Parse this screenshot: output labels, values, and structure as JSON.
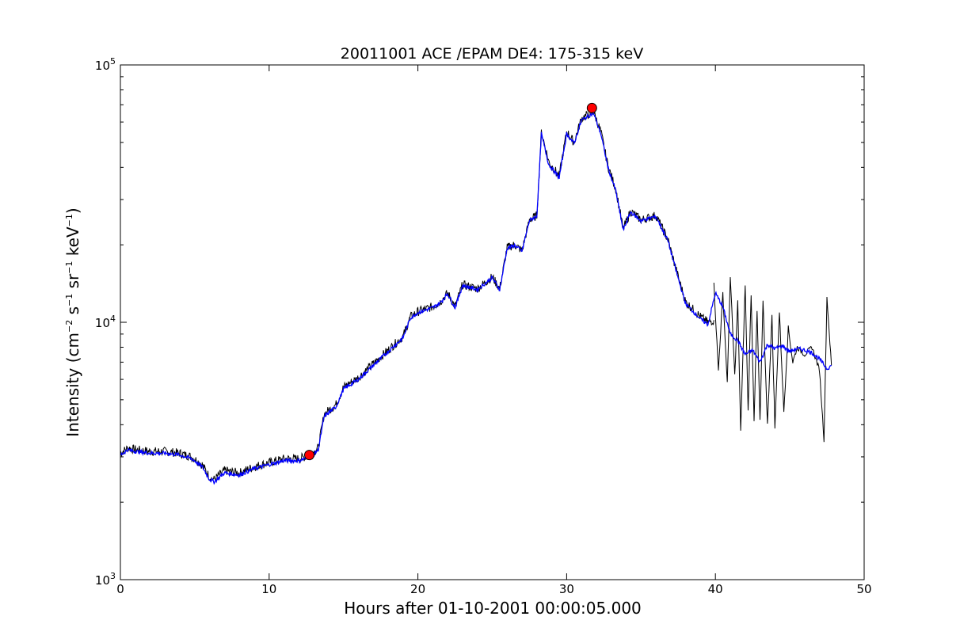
{
  "chart_data": {
    "type": "line",
    "title": "20011001 ACE /EPAM DE4: 175-315 keV",
    "xlabel": "Hours after 01-10-2001 00:00:05.000",
    "ylabel_parts": [
      "Intensity (cm",
      "−2",
      "s",
      "−1",
      "sr",
      "−1",
      "keV",
      "−1",
      ")"
    ],
    "xlim": [
      0,
      50
    ],
    "ylim": [
      1000,
      100000
    ],
    "yscale": "log",
    "grid": false,
    "x_ticks": [
      0,
      10,
      20,
      30,
      40,
      50
    ],
    "x_tick_labels": [
      "0",
      "10",
      "20",
      "30",
      "40",
      "50"
    ],
    "y_ticks": [
      {
        "value": 1000,
        "base": "10",
        "exp": "3"
      },
      {
        "value": 10000,
        "base": "10",
        "exp": "4"
      },
      {
        "value": 100000,
        "base": "10",
        "exp": "5"
      }
    ],
    "colors": {
      "raw": "#000000",
      "smoothed": "#0000ff",
      "marker": "#ff0000"
    },
    "series": [
      {
        "style": "raw",
        "x": [
          0,
          0.5,
          1,
          2,
          3,
          4,
          4.8,
          5.5,
          6,
          6.3,
          7,
          8,
          9,
          10,
          11,
          12,
          12.8,
          13.3,
          13.7,
          14.5,
          15,
          16,
          17,
          18,
          19,
          19.5,
          20,
          21,
          21.5,
          22,
          22.5,
          23,
          24,
          25,
          25.5,
          26,
          26.5,
          27,
          27.5,
          28,
          28.3,
          28.8,
          29.5,
          30,
          30.5,
          31,
          31.8,
          32.3,
          32.8,
          33.3,
          33.8,
          34.3,
          35,
          36,
          36.8,
          37.5,
          38,
          39,
          39.5,
          39.9
        ],
        "y": [
          3100,
          3250,
          3200,
          3150,
          3150,
          3100,
          3000,
          2800,
          2500,
          2450,
          2650,
          2600,
          2750,
          2850,
          2950,
          2950,
          3050,
          3250,
          4400,
          4800,
          5600,
          6100,
          6900,
          7800,
          8800,
          10500,
          11000,
          11500,
          12000,
          13000,
          11500,
          14000,
          13500,
          15000,
          13500,
          19500,
          20000,
          19000,
          25000,
          26000,
          55000,
          42000,
          37000,
          55000,
          50000,
          62000,
          66000,
          55000,
          40000,
          33000,
          23000,
          27000,
          25000,
          26000,
          21000,
          15000,
          12000,
          10500,
          10000,
          10200
        ]
      },
      {
        "style": "raw-noisy",
        "x": [
          39.9,
          40.2,
          40.5,
          40.8,
          41,
          41.3,
          41.5,
          41.7,
          42,
          42.2,
          42.4,
          42.6,
          42.8,
          43,
          43.2,
          43.5,
          43.8,
          44,
          44.3,
          44.6,
          44.9,
          45.2,
          45.5,
          46,
          46.5,
          47,
          47.3,
          47.5,
          47.8
        ],
        "y": [
          14000,
          6500,
          13000,
          5800,
          15000,
          6200,
          12000,
          3800,
          14000,
          4500,
          13000,
          4200,
          11000,
          4100,
          12000,
          4000,
          10500,
          3900,
          11000,
          4500,
          9500,
          7000,
          8000,
          7500,
          8000,
          6500,
          3500,
          12500,
          6800
        ]
      },
      {
        "style": "smoothed",
        "x": [
          0,
          0.5,
          1,
          2,
          3,
          4,
          4.8,
          5.5,
          6,
          6.3,
          7,
          8,
          9,
          10,
          11,
          12,
          12.8,
          13.3,
          13.7,
          14.5,
          15,
          16,
          17,
          18,
          19,
          19.5,
          20,
          21,
          21.5,
          22,
          22.5,
          23,
          24,
          25,
          25.5,
          26,
          26.5,
          27,
          27.5,
          28,
          28.3,
          28.8,
          29.5,
          30,
          30.5,
          31,
          31.8,
          32.3,
          32.8,
          33.3,
          33.8,
          34.3,
          35,
          36,
          36.8,
          37.5,
          38,
          39,
          39.5,
          40,
          40.5,
          41,
          41.5,
          42,
          42.5,
          43,
          43.5,
          44,
          44.5,
          45,
          45.5,
          46,
          46.5,
          47,
          47.5,
          47.8
        ],
        "y": [
          3050,
          3200,
          3150,
          3100,
          3100,
          3050,
          2950,
          2750,
          2450,
          2400,
          2600,
          2550,
          2700,
          2800,
          2900,
          2900,
          3000,
          3200,
          4300,
          4700,
          5500,
          6000,
          6800,
          7700,
          8700,
          10400,
          10900,
          11400,
          11900,
          12900,
          11400,
          13900,
          13400,
          14900,
          13400,
          19400,
          19900,
          18900,
          24900,
          25900,
          54000,
          41000,
          36500,
          54000,
          49500,
          61000,
          65000,
          54000,
          39500,
          32500,
          22800,
          26800,
          24800,
          25800,
          20800,
          14800,
          11800,
          10300,
          9800,
          13000,
          11500,
          9000,
          8500,
          7500,
          7800,
          7000,
          8200,
          7900,
          8100,
          7700,
          7900,
          7800,
          7600,
          7200,
          6600,
          6800
        ]
      }
    ],
    "markers": [
      {
        "x": 12.7,
        "y": 3050
      },
      {
        "x": 31.7,
        "y": 68000
      }
    ]
  }
}
